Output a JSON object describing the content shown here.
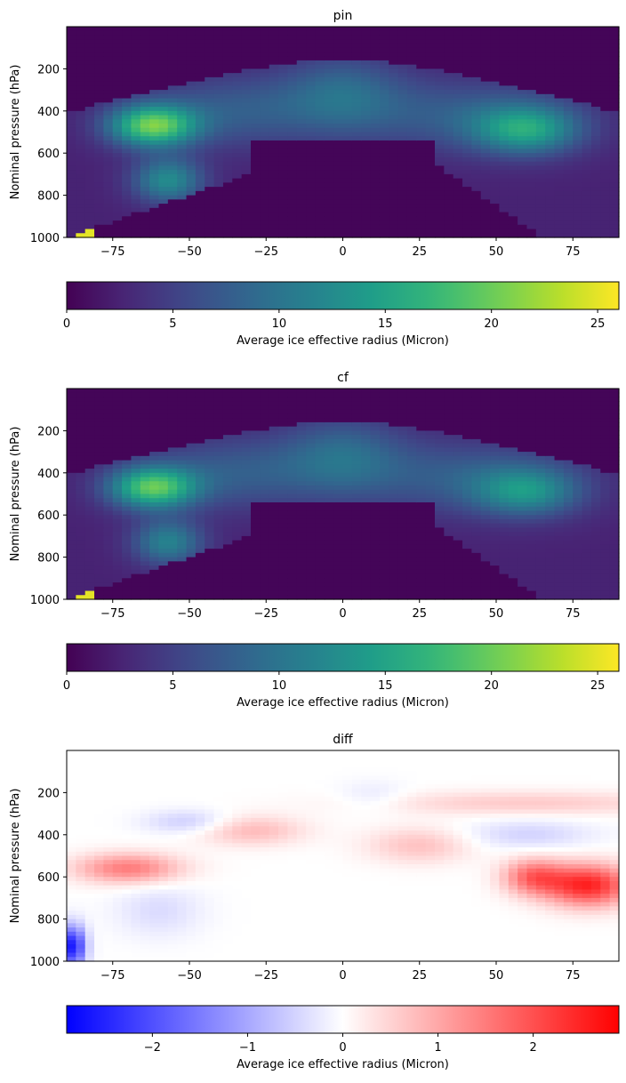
{
  "chart_data": [
    {
      "type": "heatmap",
      "title": "pin",
      "xlabel": "",
      "ylabel": "Nominal pressure (hPa)",
      "xlim": [
        -90,
        90
      ],
      "ylim": [
        1000,
        0
      ],
      "xticks": [
        -75,
        -50,
        -25,
        0,
        25,
        50,
        75
      ],
      "yticks": [
        200,
        400,
        600,
        800,
        1000
      ],
      "xtick_labels": [
        "−75",
        "−50",
        "−25",
        "0",
        "25",
        "50",
        "75"
      ],
      "ytick_labels": [
        "200",
        "400",
        "600",
        "800",
        "1000"
      ],
      "colormap": "viridis",
      "colorbar": {
        "label": "Average ice effective radius (Micron)",
        "range": [
          0,
          26
        ],
        "ticks": [
          0,
          5,
          10,
          15,
          20,
          25
        ],
        "tick_labels": [
          "0",
          "5",
          "10",
          "15",
          "20",
          "25"
        ]
      },
      "features": [
        {
          "lat": -63,
          "p": 470,
          "value": 22
        },
        {
          "lat": -58,
          "p": 730,
          "value": 14
        },
        {
          "lat": 0,
          "p": 280,
          "value": 10
        },
        {
          "lat": 60,
          "p": 490,
          "value": 17
        },
        {
          "lat": -89,
          "p": 980,
          "value": 25
        }
      ]
    },
    {
      "type": "heatmap",
      "title": "cf",
      "xlabel": "",
      "ylabel": "Nominal pressure (hPa)",
      "xlim": [
        -90,
        90
      ],
      "ylim": [
        1000,
        0
      ],
      "xticks": [
        -75,
        -50,
        -25,
        0,
        25,
        50,
        75
      ],
      "yticks": [
        200,
        400,
        600,
        800,
        1000
      ],
      "xtick_labels": [
        "−75",
        "−50",
        "−25",
        "0",
        "25",
        "50",
        "75"
      ],
      "ytick_labels": [
        "200",
        "400",
        "600",
        "800",
        "1000"
      ],
      "colormap": "viridis",
      "colorbar": {
        "label": "Average ice effective radius (Micron)",
        "range": [
          0,
          26
        ],
        "ticks": [
          0,
          5,
          10,
          15,
          20,
          25
        ],
        "tick_labels": [
          "0",
          "5",
          "10",
          "15",
          "20",
          "25"
        ]
      },
      "features": [
        {
          "lat": -63,
          "p": 470,
          "value": 21
        },
        {
          "lat": -58,
          "p": 720,
          "value": 13
        },
        {
          "lat": 0,
          "p": 280,
          "value": 10
        },
        {
          "lat": 60,
          "p": 500,
          "value": 15
        },
        {
          "lat": -89,
          "p": 980,
          "value": 25
        }
      ]
    },
    {
      "type": "heatmap",
      "title": "diff",
      "xlabel": "",
      "ylabel": "Nominal pressure (hPa)",
      "xlim": [
        -90,
        90
      ],
      "ylim": [
        1000,
        0
      ],
      "xticks": [
        -75,
        -50,
        -25,
        0,
        25,
        50,
        75
      ],
      "yticks": [
        200,
        400,
        600,
        800,
        1000
      ],
      "xtick_labels": [
        "−75",
        "−50",
        "−25",
        "0",
        "25",
        "50",
        "75"
      ],
      "ytick_labels": [
        "200",
        "400",
        "600",
        "800",
        "1000"
      ],
      "colormap": "bwr",
      "colorbar": {
        "label": "Average ice effective radius (Micron)",
        "range": [
          -2.9,
          2.9
        ],
        "ticks": [
          -2,
          -1,
          0,
          1,
          2
        ],
        "tick_labels": [
          "−2",
          "−1",
          "0",
          "1",
          "2"
        ]
      },
      "features": [
        {
          "lat": -70,
          "p": 560,
          "value": 1.5
        },
        {
          "lat": 78,
          "p": 640,
          "value": 2.5
        },
        {
          "lat": 62,
          "p": 600,
          "value": 1.6
        },
        {
          "lat": -88,
          "p": 940,
          "value": -2.6
        },
        {
          "lat": -50,
          "p": 350,
          "value": -0.6
        },
        {
          "lat": 60,
          "p": 400,
          "value": -0.5
        }
      ]
    }
  ]
}
